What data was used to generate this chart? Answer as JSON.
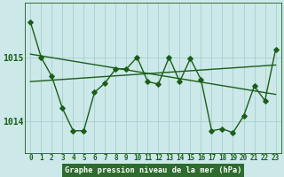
{
  "title": "Graphe pression niveau de la mer (hPa)",
  "hours": [
    0,
    1,
    2,
    3,
    4,
    5,
    6,
    7,
    8,
    9,
    10,
    11,
    12,
    13,
    14,
    15,
    16,
    17,
    18,
    19,
    20,
    21,
    22,
    23
  ],
  "trend1_x": [
    0,
    23
  ],
  "trend1_y": [
    1015.05,
    1014.42
  ],
  "trend2_x": [
    0,
    23
  ],
  "trend2_y": [
    1014.62,
    1014.88
  ],
  "main_y": [
    1015.55,
    1015.0,
    1014.7,
    1014.2,
    1013.85,
    1013.85,
    1014.45,
    1014.6,
    1014.82,
    1014.82,
    1015.0,
    1014.62,
    1014.58,
    1015.0,
    1014.62,
    1014.98,
    1014.65,
    1013.85,
    1013.88,
    1013.82,
    1014.08,
    1014.55,
    1014.32,
    1015.12
  ],
  "yticks": [
    1014.0,
    1015.0
  ],
  "ymin": 1013.5,
  "ymax": 1015.85,
  "xmin": -0.5,
  "xmax": 23.5,
  "bg_color": "#cce8e8",
  "line_color": "#1a5e1a",
  "grid_color": "#aacece",
  "title_bg": "#2e6b2e",
  "marker": "D",
  "markersize": 2.8,
  "linewidth": 1.0,
  "tick_fontsize": 5.5,
  "ytick_fontsize": 7.0,
  "title_fontsize": 6.2
}
